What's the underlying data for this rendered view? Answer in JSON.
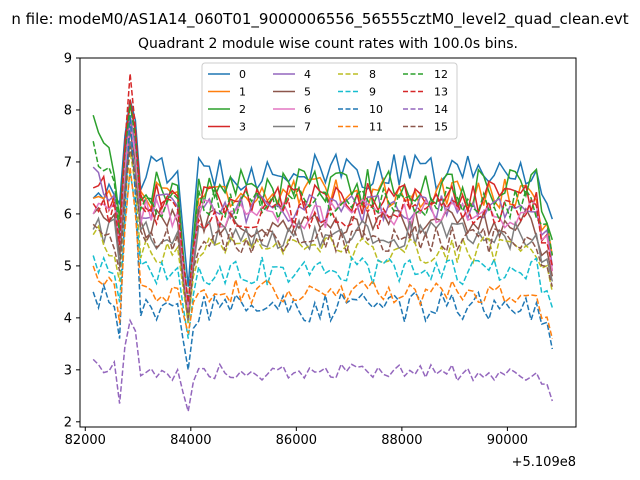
{
  "figure": {
    "suptitle": "n file: modeM0/AS1A14_060T01_9000006556_56555cztM0_level2_quad_clean.evt",
    "title": "Quadrant 2 module wise count rates with 100.0s bins.",
    "offset_label": "+5.109e8"
  },
  "chart_data": {
    "type": "line",
    "title": "Quadrant 2 module wise count rates with 100.0s bins.",
    "xlabel": "",
    "ylabel": "",
    "x_offset": "+5.109e8",
    "xlim": [
      81900,
      91300
    ],
    "ylim": [
      1.9,
      9.0
    ],
    "x_start": 82150,
    "x_end": 90850,
    "n_points": 88,
    "x_ticks": [
      82000,
      84000,
      86000,
      88000,
      90000
    ],
    "x_tick_labels": [
      "82000",
      "84000",
      "86000",
      "88000",
      "90000"
    ],
    "y_ticks": [
      2,
      3,
      4,
      5,
      6,
      7,
      8,
      9
    ],
    "y_tick_labels": [
      "2",
      "3",
      "4",
      "5",
      "6",
      "7",
      "8",
      "9"
    ],
    "grid": false,
    "legend_position": "top-center",
    "legend_columns": 4,
    "series": [
      {
        "name": "0",
        "color": "#1f77b4",
        "style": "solid",
        "level": 6.8,
        "start": 6.3,
        "peak": 8.2,
        "dip": 4.6,
        "end": 5.9,
        "noise": 0.35
      },
      {
        "name": "1",
        "color": "#ff7f0e",
        "style": "solid",
        "level": 6.4,
        "start": 6.3,
        "peak": 7.8,
        "dip": 4.0,
        "end": 5.2,
        "noise": 0.3
      },
      {
        "name": "2",
        "color": "#2ca02c",
        "style": "solid",
        "level": 6.5,
        "start": 7.9,
        "peak": 8.1,
        "dip": 4.1,
        "end": 5.5,
        "noise": 0.38
      },
      {
        "name": "3",
        "color": "#d62728",
        "style": "solid",
        "level": 6.3,
        "start": 6.5,
        "peak": 8.2,
        "dip": 4.0,
        "end": 4.9,
        "noise": 0.33
      },
      {
        "name": "4",
        "color": "#9467bd",
        "style": "solid",
        "level": 6.1,
        "start": 6.9,
        "peak": 7.9,
        "dip": 4.2,
        "end": 5.0,
        "noise": 0.28
      },
      {
        "name": "5",
        "color": "#8c564b",
        "style": "solid",
        "level": 5.8,
        "start": 6.0,
        "peak": 7.6,
        "dip": 4.0,
        "end": 4.8,
        "noise": 0.3
      },
      {
        "name": "6",
        "color": "#e377c2",
        "style": "solid",
        "level": 6.0,
        "start": 6.0,
        "peak": 7.7,
        "dip": 4.1,
        "end": 4.9,
        "noise": 0.28
      },
      {
        "name": "7",
        "color": "#7f7f7f",
        "style": "solid",
        "level": 5.6,
        "start": 5.7,
        "peak": 7.4,
        "dip": 3.9,
        "end": 4.7,
        "noise": 0.28
      },
      {
        "name": "8",
        "color": "#bcbd22",
        "style": "dashed",
        "level": 5.3,
        "start": 5.6,
        "peak": 7.2,
        "dip": 3.9,
        "end": 4.5,
        "noise": 0.25
      },
      {
        "name": "9",
        "color": "#17becf",
        "style": "dashed",
        "level": 4.9,
        "start": 5.2,
        "peak": 6.8,
        "dip": 3.6,
        "end": 4.2,
        "noise": 0.28
      },
      {
        "name": "10",
        "color": "#1f77b4",
        "style": "dashed",
        "level": 4.2,
        "start": 4.5,
        "peak": 7.9,
        "dip": 3.0,
        "end": 3.4,
        "noise": 0.3
      },
      {
        "name": "11",
        "color": "#ff7f0e",
        "style": "dashed",
        "level": 4.5,
        "start": 5.0,
        "peak": 6.9,
        "dip": 3.7,
        "end": 3.6,
        "noise": 0.25
      },
      {
        "name": "12",
        "color": "#2ca02c",
        "style": "dashed",
        "level": 6.2,
        "start": 7.4,
        "peak": 8.1,
        "dip": 4.3,
        "end": 5.2,
        "noise": 0.32
      },
      {
        "name": "13",
        "color": "#d62728",
        "style": "dashed",
        "level": 6.0,
        "start": 6.2,
        "peak": 8.7,
        "dip": 4.3,
        "end": 5.0,
        "noise": 0.3
      },
      {
        "name": "14",
        "color": "#9467bd",
        "style": "dashed",
        "level": 2.95,
        "start": 3.2,
        "peak": 3.95,
        "dip": 2.2,
        "end": 2.4,
        "noise": 0.16
      },
      {
        "name": "15",
        "color": "#8c564b",
        "style": "dashed",
        "level": 5.5,
        "start": 5.8,
        "peak": 7.3,
        "dip": 4.0,
        "end": 4.6,
        "noise": 0.28
      }
    ]
  }
}
